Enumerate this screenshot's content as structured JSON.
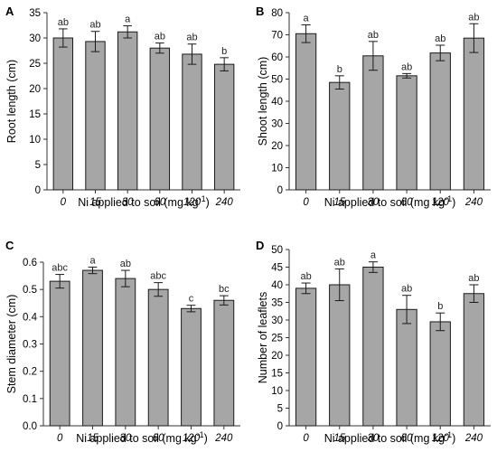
{
  "figure": {
    "x_label_text": "Ni applied to soil (mg kg",
    "x_label_sup": "-1",
    "x_label_close": ")"
  },
  "chart_data": [
    {
      "panel": "A",
      "type": "bar",
      "categories": [
        "0",
        "15",
        "30",
        "60",
        "120",
        "240"
      ],
      "values": [
        30.0,
        29.3,
        31.2,
        28.0,
        26.8,
        24.8
      ],
      "errors": [
        1.8,
        2.0,
        1.2,
        1.0,
        2.0,
        1.3
      ],
      "letters": [
        "ab",
        "ab",
        "a",
        "ab",
        "ab",
        "b"
      ],
      "ylabel": "Root length (cm)",
      "ylim": [
        0,
        35
      ],
      "yticks": [
        0,
        5,
        10,
        15,
        20,
        25,
        30,
        35
      ],
      "grid": false,
      "bar_color": "#a6a6a6"
    },
    {
      "panel": "B",
      "type": "bar",
      "categories": [
        "0",
        "15",
        "30",
        "60",
        "120",
        "240"
      ],
      "values": [
        70.5,
        48.5,
        60.5,
        51.5,
        61.8,
        68.5
      ],
      "errors": [
        4.0,
        3.0,
        6.5,
        1.0,
        3.5,
        6.5
      ],
      "letters": [
        "a",
        "b",
        "ab",
        "ab",
        "ab",
        "ab"
      ],
      "ylabel": "Shoot length (cm)",
      "ylim": [
        0,
        80
      ],
      "yticks": [
        0,
        10,
        20,
        30,
        40,
        50,
        60,
        70,
        80
      ],
      "grid": false,
      "bar_color": "#a6a6a6"
    },
    {
      "panel": "C",
      "type": "bar",
      "categories": [
        "0",
        "15",
        "30",
        "60",
        "120",
        "240"
      ],
      "values": [
        0.53,
        0.57,
        0.54,
        0.5,
        0.43,
        0.46
      ],
      "errors": [
        0.025,
        0.012,
        0.03,
        0.025,
        0.012,
        0.017
      ],
      "letters": [
        "abc",
        "a",
        "ab",
        "abc",
        "c",
        "bc"
      ],
      "ylabel": "Stem diameter (cm)",
      "ylim": [
        0,
        0.6
      ],
      "yticks": [
        "0.0",
        "0.1",
        "0.2",
        "0.3",
        "0.4",
        "0.5",
        "0.6"
      ],
      "grid": false,
      "bar_color": "#a6a6a6"
    },
    {
      "panel": "D",
      "type": "bar",
      "categories": [
        "0",
        "15",
        "30",
        "60",
        "120",
        "240"
      ],
      "values": [
        39.0,
        40.0,
        45.0,
        33.0,
        29.5,
        37.5
      ],
      "errors": [
        1.5,
        4.5,
        1.5,
        4.0,
        2.5,
        2.5
      ],
      "letters": [
        "ab",
        "ab",
        "a",
        "ab",
        "b",
        "ab"
      ],
      "ylabel": "Number of leaflets",
      "ylim": [
        0,
        50
      ],
      "yticks": [
        0,
        5,
        10,
        15,
        20,
        25,
        30,
        35,
        40,
        45,
        50
      ],
      "grid": false,
      "bar_color": "#a6a6a6"
    }
  ]
}
